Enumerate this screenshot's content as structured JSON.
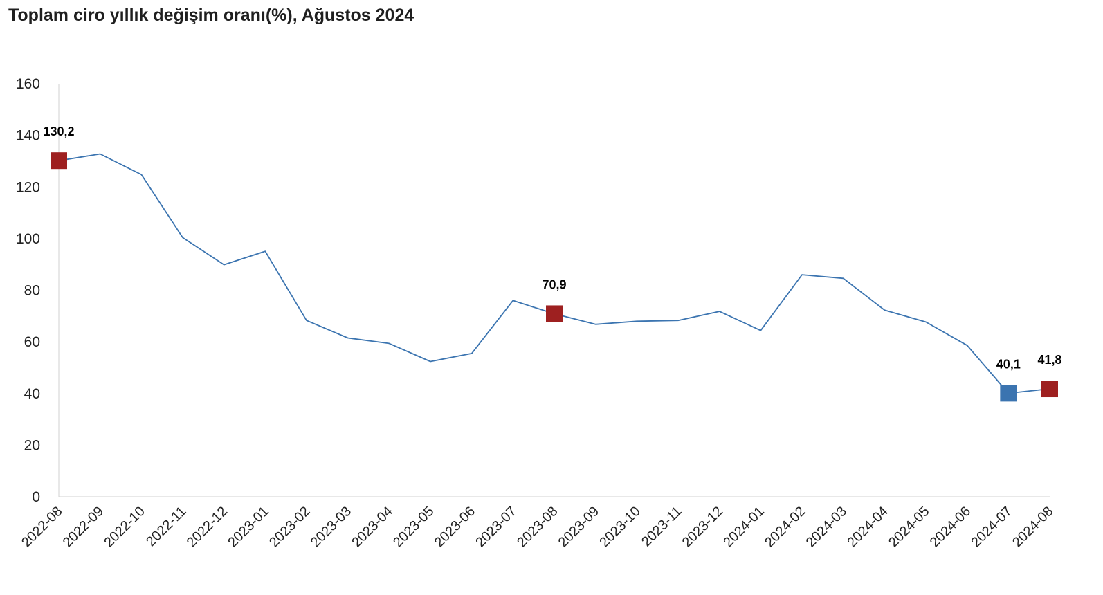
{
  "chart_data": {
    "type": "line",
    "title": "Toplam ciro yıllık değişim oranı(%), Ağustos 2024",
    "xlabel": "",
    "ylabel": "",
    "ylim": [
      0,
      160
    ],
    "yticks": [
      0,
      20,
      40,
      60,
      80,
      100,
      120,
      140,
      160
    ],
    "grid": false,
    "legend": "none",
    "categories": [
      "2022-08",
      "2022-09",
      "2022-10",
      "2022-11",
      "2022-12",
      "2023-01",
      "2023-02",
      "2023-03",
      "2023-04",
      "2023-05",
      "2023-06",
      "2023-07",
      "2023-08",
      "2023-09",
      "2023-10",
      "2023-11",
      "2023-12",
      "2024-01",
      "2024-02",
      "2024-03",
      "2024-04",
      "2024-05",
      "2024-06",
      "2024-07",
      "2024-08"
    ],
    "series": [
      {
        "color": "#3b74b0",
        "values": [
          130.2,
          132.8,
          124.8,
          100.4,
          89.9,
          95.1,
          68.3,
          61.5,
          59.4,
          52.4,
          55.5,
          76.0,
          70.9,
          66.8,
          68.0,
          68.3,
          71.8,
          64.4,
          86.0,
          84.6,
          72.3,
          67.7,
          58.6,
          40.1,
          41.8
        ]
      }
    ],
    "annotations": [
      {
        "index": 0,
        "label": "130,2",
        "marker_color": "#9e2020"
      },
      {
        "index": 12,
        "label": "70,9",
        "marker_color": "#9e2020"
      },
      {
        "index": 23,
        "label": "40,1",
        "marker_color": "#3b74b0"
      },
      {
        "index": 24,
        "label": "41,8",
        "marker_color": "#9e2020"
      }
    ]
  }
}
